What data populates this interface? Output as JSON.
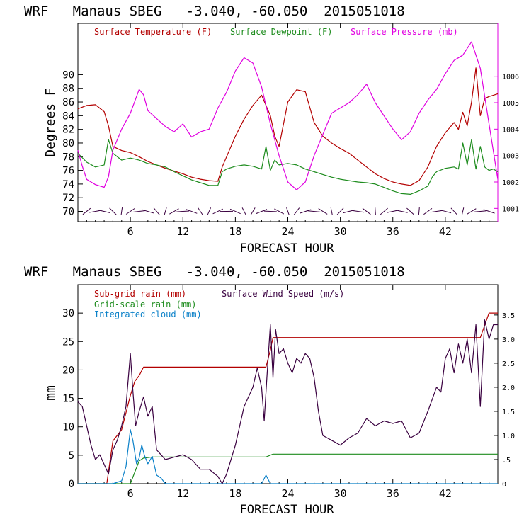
{
  "colors": {
    "temperature": "#b30000",
    "dewpoint": "#1e8c1e",
    "pressure": "#e000e0",
    "wind": "#3a0040",
    "subgrid_rain": "#b30000",
    "gridscale_rain": "#1e8c1e",
    "cloud": "#0a80c8",
    "axis": "#000000"
  },
  "chart_data": [
    {
      "type": "line",
      "title": "WRF   Manaus SBEG   -3.040, -60.050  2015051018",
      "xlabel": "FORECAST HOUR",
      "ylabel": "Degrees F",
      "xlim": [
        0,
        48
      ],
      "xticks": [
        6,
        12,
        18,
        24,
        30,
        36,
        42
      ],
      "ylim": [
        68.5,
        97.5
      ],
      "yticks": [
        70,
        72,
        74,
        76,
        78,
        80,
        82,
        84,
        86,
        88,
        90
      ],
      "y2lim": [
        1000.5,
        1008.0
      ],
      "y2ticks": [
        1001,
        1002,
        1003,
        1004,
        1005,
        1006
      ],
      "legend": [
        "Surface Temperature (F)",
        "Surface Dewpoint (F)",
        "Surface Pressure (mb)"
      ],
      "legend_placement": "top",
      "series": [
        {
          "name": "Surface Temperature (F)",
          "axis": "left",
          "x": [
            0,
            1,
            2,
            3,
            3.5,
            4,
            5,
            6,
            7,
            8,
            9,
            10,
            11,
            12,
            13,
            14,
            15,
            16,
            16.5,
            17,
            18,
            19,
            20,
            21,
            22,
            22.5,
            23,
            24,
            25,
            26,
            27,
            28,
            29,
            30,
            31,
            32,
            33,
            34,
            35,
            36,
            37,
            38,
            39,
            40,
            40.5,
            41,
            42,
            43,
            43.5,
            44,
            44.5,
            45,
            45.5,
            46,
            46.5,
            47,
            47.5,
            48
          ],
          "y": [
            85.0,
            85.5,
            85.6,
            84.6,
            82.5,
            79.5,
            78.9,
            78.6,
            78.0,
            77.3,
            76.8,
            76.3,
            75.9,
            75.5,
            75.0,
            74.7,
            74.5,
            74.4,
            76.5,
            78.0,
            81.0,
            83.5,
            85.5,
            87.0,
            84.0,
            81.0,
            79.5,
            86.0,
            87.8,
            87.5,
            83.0,
            81.0,
            80.0,
            79.2,
            78.5,
            77.5,
            76.5,
            75.5,
            74.8,
            74.3,
            74.0,
            73.8,
            74.5,
            76.5,
            78.0,
            79.5,
            81.5,
            83.0,
            82.0,
            84.5,
            82.5,
            86.0,
            91.0,
            84.0,
            86.5,
            86.8,
            87.0,
            87.2
          ]
        },
        {
          "name": "Surface Dewpoint (F)",
          "axis": "left",
          "x": [
            0,
            1,
            2,
            3,
            3.5,
            4,
            5,
            6,
            7,
            8,
            9,
            10,
            11,
            12,
            13,
            14,
            15,
            16,
            16.5,
            17,
            18,
            19,
            20,
            21,
            21.5,
            22,
            22.5,
            23,
            24,
            25,
            26,
            27,
            28,
            29,
            30,
            31,
            32,
            33,
            34,
            35,
            36,
            37,
            38,
            39,
            40,
            40.5,
            41,
            42,
            43,
            43.5,
            44,
            44.5,
            45,
            45.5,
            46,
            46.5,
            47,
            47.5,
            48
          ],
          "y": [
            78.5,
            77.2,
            76.5,
            76.8,
            80.5,
            78.5,
            77.5,
            77.8,
            77.5,
            77.0,
            76.8,
            76.5,
            75.8,
            75.2,
            74.6,
            74.2,
            73.8,
            73.8,
            75.8,
            76.2,
            76.6,
            76.8,
            76.6,
            76.2,
            79.5,
            76.0,
            77.5,
            76.8,
            77.0,
            76.8,
            76.2,
            75.8,
            75.4,
            75.0,
            74.7,
            74.5,
            74.3,
            74.2,
            74.0,
            73.5,
            73.0,
            72.6,
            72.5,
            73.0,
            73.7,
            75.0,
            75.8,
            76.3,
            76.5,
            76.2,
            80.0,
            76.8,
            80.5,
            76.2,
            79.5,
            76.5,
            76.0,
            76.2,
            75.8
          ]
        },
        {
          "name": "Surface Pressure (mb)",
          "axis": "right",
          "x": [
            0,
            0.5,
            1,
            2,
            3,
            3.5,
            4,
            5,
            6,
            7,
            7.5,
            8,
            9,
            10,
            11,
            12,
            13,
            14,
            15,
            16,
            17,
            18,
            19,
            20,
            21,
            22,
            23,
            24,
            25,
            26,
            27,
            28,
            29,
            30,
            31,
            32,
            33,
            34,
            35,
            36,
            37,
            38,
            39,
            40,
            41,
            42,
            43,
            44,
            45,
            46,
            47,
            48
          ],
          "y": [
            1003.2,
            1002.6,
            1002.1,
            1001.9,
            1001.8,
            1002.2,
            1003.2,
            1004.0,
            1004.6,
            1005.5,
            1005.3,
            1004.7,
            1004.4,
            1004.1,
            1003.9,
            1004.2,
            1003.7,
            1003.9,
            1004.0,
            1004.8,
            1005.4,
            1006.2,
            1006.7,
            1006.5,
            1005.6,
            1004.2,
            1003.0,
            1002.0,
            1001.7,
            1002.0,
            1003.0,
            1003.8,
            1004.6,
            1004.8,
            1005.0,
            1005.3,
            1005.7,
            1005.0,
            1004.5,
            1004.0,
            1003.6,
            1003.9,
            1004.6,
            1005.1,
            1005.5,
            1006.1,
            1006.6,
            1006.8,
            1007.3,
            1006.3,
            1004.2,
            1002.1
          ]
        }
      ]
    },
    {
      "type": "line",
      "title": "WRF   Manaus SBEG   -3.040, -60.050  2015051018",
      "xlabel": "FORECAST HOUR",
      "ylabel": "mm",
      "xlim": [
        0,
        48
      ],
      "xticks": [
        6,
        12,
        18,
        24,
        30,
        36,
        42
      ],
      "ylim": [
        0,
        35
      ],
      "yticks": [
        0,
        5,
        10,
        15,
        20,
        25,
        30
      ],
      "y2lim": [
        0,
        4.13
      ],
      "y2ticks": [
        0,
        0.5,
        1.0,
        1.5,
        2.0,
        2.5,
        3.0,
        3.5
      ],
      "y2ticklabels": [
        "0",
        ".5",
        "1.0",
        "1.5",
        "2.0",
        "2.5",
        "3.0",
        "3.5"
      ],
      "legend": [
        "Sub-grid rain (mm)",
        "Grid-scale rain (mm)",
        "Integrated cloud (mm)",
        "Surface Wind Speed (m/s)"
      ],
      "legend_placement": "top-left",
      "series": [
        {
          "name": "Sub-grid rain (mm)",
          "axis": "left",
          "x": [
            0,
            3.3,
            4,
            5,
            6,
            6.5,
            7,
            7.5,
            8,
            21.5,
            22,
            22.3,
            46,
            47,
            48
          ],
          "y": [
            0,
            0,
            7.5,
            9.5,
            15.5,
            18.0,
            19.0,
            20.5,
            20.5,
            20.5,
            23.5,
            25.7,
            25.7,
            30.0,
            30.0
          ]
        },
        {
          "name": "Grid-scale rain (mm)",
          "axis": "left",
          "x": [
            0,
            6,
            6.5,
            7,
            7.5,
            8,
            8.5,
            9,
            21.5,
            22.3,
            48
          ],
          "y": [
            0,
            0,
            2.0,
            4.0,
            4.5,
            4.6,
            4.7,
            4.7,
            4.7,
            5.2,
            5.2
          ]
        },
        {
          "name": "Integrated cloud (mm)",
          "axis": "left",
          "x": [
            0,
            4,
            5,
            5.5,
            6,
            6.3,
            6.7,
            7,
            7.3,
            7.6,
            8,
            8.5,
            9,
            9.5,
            10,
            21,
            21.5,
            22,
            48
          ],
          "y": [
            0,
            0,
            0.5,
            3.0,
            9.5,
            7.5,
            3.5,
            4.5,
            6.8,
            5.0,
            3.5,
            4.8,
            1.5,
            1.0,
            0,
            0,
            1.5,
            0,
            0
          ]
        },
        {
          "name": "Surface Wind Speed (m/s)",
          "axis": "right",
          "x": [
            0,
            0.5,
            1,
            1.5,
            2,
            2.5,
            3,
            3.5,
            4,
            4.5,
            5,
            5.5,
            6,
            6.3,
            6.6,
            7,
            7.5,
            8,
            8.5,
            9,
            9.5,
            10,
            11,
            12,
            13,
            14,
            15,
            16,
            16.5,
            17,
            17.5,
            18,
            19,
            20,
            20.5,
            21,
            21.3,
            21.6,
            22,
            22.3,
            22.6,
            23,
            23.5,
            24,
            24.5,
            25,
            25.5,
            26,
            26.5,
            27,
            27.5,
            28,
            29,
            30,
            31,
            32,
            33,
            34,
            35,
            36,
            37,
            38,
            39,
            40,
            41,
            41.5,
            42,
            42.5,
            43,
            43.5,
            44,
            44.5,
            45,
            45.5,
            46,
            46.5,
            47,
            47.5,
            48
          ],
          "y": [
            1.7,
            1.6,
            1.2,
            0.8,
            0.5,
            0.6,
            0.4,
            0.2,
            0.7,
            0.9,
            1.2,
            1.6,
            2.7,
            1.9,
            1.2,
            1.5,
            1.8,
            1.4,
            1.6,
            0.7,
            0.6,
            0.5,
            0.55,
            0.6,
            0.5,
            0.3,
            0.3,
            0.15,
            0.0,
            0.2,
            0.5,
            0.8,
            1.6,
            2.0,
            2.4,
            2.0,
            1.3,
            2.2,
            3.3,
            2.2,
            3.2,
            2.7,
            2.8,
            2.5,
            2.3,
            2.6,
            2.5,
            2.7,
            2.6,
            2.2,
            1.5,
            1.0,
            0.9,
            0.8,
            0.95,
            1.05,
            1.35,
            1.2,
            1.3,
            1.25,
            1.3,
            0.95,
            1.05,
            1.5,
            2.0,
            1.9,
            2.6,
            2.8,
            2.3,
            2.9,
            2.5,
            3.0,
            2.3,
            3.3,
            1.6,
            3.4,
            3.0,
            3.3,
            3.3
          ]
        }
      ]
    }
  ]
}
